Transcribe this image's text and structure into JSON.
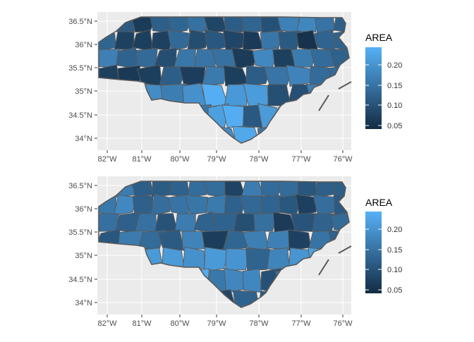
{
  "panels": [
    {
      "x_ticks": [
        "82°W",
        "81°W",
        "80°W",
        "79°W",
        "78°W",
        "77°W",
        "76°W"
      ],
      "y_ticks": [
        "36.5°N",
        "36°N",
        "35.5°N",
        "35°N",
        "34.5°N",
        "34°N"
      ],
      "legend": {
        "title": "AREA",
        "labels": [
          "0.20",
          "0.15",
          "0.10",
          "0.05"
        ]
      },
      "palette": {
        "low": "#132B43",
        "high": "#56B1F7",
        "background": "#ebebeb",
        "grid": "#ffffff",
        "border": "#595959"
      }
    },
    {
      "x_ticks": [
        "82°W",
        "81°W",
        "80°W",
        "79°W",
        "78°W",
        "77°W",
        "76°W"
      ],
      "y_ticks": [
        "36.5°N",
        "36°N",
        "35.5°N",
        "35°N",
        "34.5°N",
        "34°N"
      ],
      "legend": {
        "title": "AREA",
        "labels": [
          "0.20",
          "0.15",
          "0.10",
          "0.05"
        ]
      },
      "palette": {
        "low": "#132B43",
        "high": "#56B1F7",
        "background": "#ebebeb",
        "grid": "#ffffff",
        "border": "#595959"
      }
    }
  ]
}
